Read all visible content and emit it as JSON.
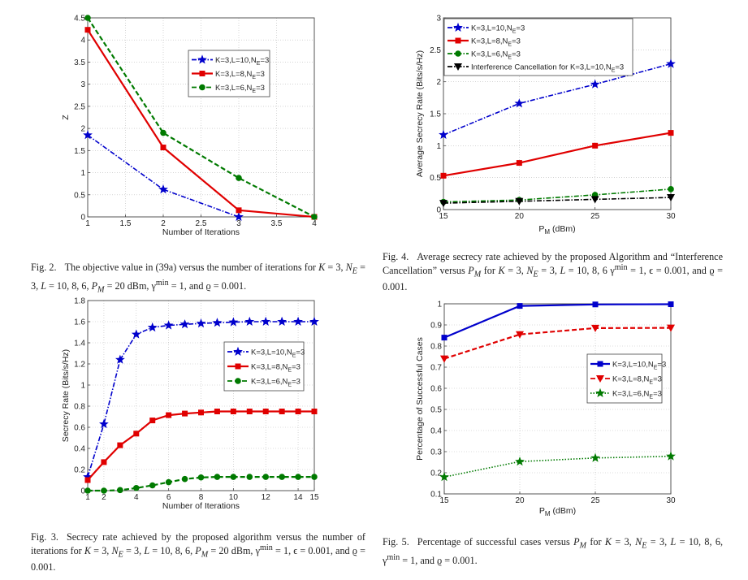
{
  "chart_data": [
    {
      "id": "fig2",
      "type": "line",
      "xlabel": "Number of Iterations",
      "ylabel": "Z",
      "xlim": [
        1,
        4
      ],
      "ylim": [
        0,
        4.5
      ],
      "xticks": [
        1,
        1.5,
        2,
        2.5,
        3,
        3.5,
        4
      ],
      "xtick_labels": [
        "1",
        "1.5",
        "2",
        "2.5",
        "3",
        "3.5",
        "4"
      ],
      "yticks": [
        0,
        0.5,
        1,
        1.5,
        2,
        2.5,
        3,
        3.5,
        4,
        4.5
      ],
      "ytick_labels": [
        "0",
        "0.5",
        "1",
        "1.5",
        "2",
        "2.5",
        "3",
        "3.5",
        "4",
        "4.5"
      ],
      "grid": true,
      "legend_position": "center-right",
      "series": [
        {
          "name": "K=3,L=10,N_E=3",
          "label_main": "K=3,L=10,N",
          "label_sub": "E",
          "label_tail": "=3",
          "x": [
            1,
            2,
            3
          ],
          "values": [
            1.85,
            0.62,
            0.0
          ],
          "color": "#0000cc",
          "dash": "dashdot",
          "marker": "star"
        },
        {
          "name": "K=3,L=8,N_E=3",
          "label_main": "K=3,L=8,N",
          "label_sub": "E",
          "label_tail": "=3",
          "x": [
            1,
            2,
            3,
            4
          ],
          "values": [
            4.23,
            1.57,
            0.15,
            0.0
          ],
          "color": "#e00000",
          "dash": "solid",
          "marker": "square"
        },
        {
          "name": "K=3,L=6,N_E=3",
          "label_main": "K=3,L=6,N",
          "label_sub": "E",
          "label_tail": "=3",
          "x": [
            1,
            2,
            3,
            4
          ],
          "values": [
            4.5,
            1.9,
            0.88,
            0.0
          ],
          "color": "#007a00",
          "dash": "dashed",
          "marker": "circle"
        }
      ]
    },
    {
      "id": "fig4",
      "type": "line",
      "xlabel": "P",
      "xlabel_sub": "M",
      "xlabel_tail": " (dBm)",
      "ylabel": "Average  Secrecy Rate (Bits/s/Hz)",
      "xlim": [
        15,
        30
      ],
      "ylim": [
        0,
        3
      ],
      "xticks": [
        15,
        20,
        25,
        30
      ],
      "xtick_labels": [
        "15",
        "20",
        "25",
        "30"
      ],
      "yticks": [
        0,
        0.5,
        1,
        1.5,
        2,
        2.5,
        3
      ],
      "ytick_labels": [
        "0",
        "0.5",
        "1",
        "1.5",
        "2",
        "2.5",
        "3"
      ],
      "grid": true,
      "legend_position": "top-left",
      "series": [
        {
          "name": "K=3,L=10,N_E=3",
          "label_main": "K=3,L=10,N",
          "label_sub": "E",
          "label_tail": "=3",
          "x": [
            15,
            20,
            25,
            30
          ],
          "values": [
            1.17,
            1.66,
            1.96,
            2.28
          ],
          "color": "#0000cc",
          "dash": "dashdot",
          "marker": "star"
        },
        {
          "name": "K=3,L=8,N_E=3",
          "label_main": "K=3,L=8,N",
          "label_sub": "E",
          "label_tail": "=3",
          "x": [
            15,
            20,
            25,
            30
          ],
          "values": [
            0.53,
            0.73,
            1.0,
            1.2
          ],
          "color": "#e00000",
          "dash": "solid",
          "marker": "square"
        },
        {
          "name": "K=3,L=6,N_E=3",
          "label_main": "K=3,L=6,N",
          "label_sub": "E",
          "label_tail": "=3",
          "x": [
            15,
            20,
            25,
            30
          ],
          "values": [
            0.12,
            0.15,
            0.23,
            0.32
          ],
          "color": "#007a00",
          "dash": "dashdot",
          "marker": "circle"
        },
        {
          "name": "Interference Cancellation for K=3,L=10,N_E=3",
          "label_main": "Interference Cancellation for K=3,L=10,N",
          "label_sub": "E",
          "label_tail": "=3",
          "x": [
            15,
            20,
            25,
            30
          ],
          "values": [
            0.1,
            0.13,
            0.16,
            0.19
          ],
          "color": "#000000",
          "dash": "dashdot",
          "marker": "triangle-down"
        }
      ]
    },
    {
      "id": "fig3",
      "type": "line",
      "xlabel": "Number of Iterations",
      "ylabel": "Secrecy Rate (Bits/s/Hz)",
      "xlim": [
        1,
        15
      ],
      "ylim": [
        0,
        1.8
      ],
      "xticks": [
        1,
        2,
        4,
        6,
        8,
        10,
        12,
        14,
        15
      ],
      "xtick_labels": [
        "1",
        "2",
        "4",
        "6",
        "8",
        "10",
        "12",
        "14",
        "15"
      ],
      "yticks": [
        0,
        0.2,
        0.4,
        0.6,
        0.8,
        1,
        1.2,
        1.4,
        1.6,
        1.8
      ],
      "ytick_labels": [
        "0",
        "0.2",
        "0.4",
        "0.6",
        "0.8",
        "1",
        "1.2",
        "1.4",
        "1.6",
        "1.8"
      ],
      "grid": true,
      "legend_position": "center-right",
      "series": [
        {
          "name": "K=3,L=10,N_E=3",
          "label_main": "K=3,L=10,N",
          "label_sub": "E",
          "label_tail": "=3",
          "x": [
            1,
            2,
            3,
            4,
            5,
            6,
            7,
            8,
            9,
            10,
            11,
            12,
            13,
            14,
            15
          ],
          "values": [
            0.13,
            0.63,
            1.24,
            1.48,
            1.545,
            1.565,
            1.575,
            1.583,
            1.59,
            1.595,
            1.6,
            1.6,
            1.6,
            1.6,
            1.6
          ],
          "color": "#0000cc",
          "dash": "dashdot",
          "marker": "star"
        },
        {
          "name": "K=3,L=8,N_E=3",
          "label_main": "K=3,L=8,N",
          "label_sub": "E",
          "label_tail": "=3",
          "x": [
            1,
            2,
            3,
            4,
            5,
            6,
            7,
            8,
            9,
            10,
            11,
            12,
            13,
            14,
            15
          ],
          "values": [
            0.1,
            0.27,
            0.43,
            0.54,
            0.665,
            0.715,
            0.73,
            0.74,
            0.75,
            0.75,
            0.75,
            0.75,
            0.75,
            0.75,
            0.75
          ],
          "color": "#e00000",
          "dash": "solid",
          "marker": "square"
        },
        {
          "name": "K=3,L=6,N_E=3",
          "label_main": "K=3,L=6,N",
          "label_sub": "E",
          "label_tail": "=3",
          "x": [
            1,
            2,
            3,
            4,
            5,
            6,
            7,
            8,
            9,
            10,
            11,
            12,
            13,
            14,
            15
          ],
          "values": [
            0.0,
            0.0,
            0.005,
            0.025,
            0.05,
            0.08,
            0.11,
            0.125,
            0.13,
            0.13,
            0.13,
            0.13,
            0.13,
            0.13,
            0.13
          ],
          "color": "#007a00",
          "dash": "dashed",
          "marker": "circle"
        }
      ]
    },
    {
      "id": "fig5",
      "type": "line",
      "xlabel": "P",
      "xlabel_sub": "M",
      "xlabel_tail": " (dBm)",
      "ylabel": "Percentage of Successful Cases",
      "xlim": [
        15,
        30
      ],
      "ylim": [
        0.1,
        1
      ],
      "xticks": [
        15,
        20,
        25,
        30
      ],
      "xtick_labels": [
        "15",
        "20",
        "25",
        "30"
      ],
      "yticks": [
        0.1,
        0.2,
        0.3,
        0.4,
        0.5,
        0.6,
        0.7,
        0.8,
        0.9,
        1
      ],
      "ytick_labels": [
        "0.1",
        "0.2",
        "0.3",
        "0.4",
        "0.5",
        "0.6",
        "0.7",
        "0.8",
        "0.9",
        "1"
      ],
      "grid": true,
      "legend_position": "center-right",
      "series": [
        {
          "name": "K=3,L=10,N_E=3",
          "label_main": "K=3,L=10,N",
          "label_sub": "E",
          "label_tail": "=3",
          "x": [
            15,
            20,
            25,
            30
          ],
          "values": [
            0.84,
            0.99,
            0.997,
            0.998
          ],
          "color": "#0000cc",
          "dash": "solid",
          "marker": "square"
        },
        {
          "name": "K=3,L=8,N_E=3",
          "label_main": "K=3,L=8,N",
          "label_sub": "E",
          "label_tail": "=3",
          "x": [
            15,
            20,
            25,
            30
          ],
          "values": [
            0.74,
            0.855,
            0.885,
            0.886
          ],
          "color": "#e00000",
          "dash": "dashed",
          "marker": "triangle-down"
        },
        {
          "name": "K=3,L=6,N_E=3",
          "label_main": "K=3,L=6,N",
          "label_sub": "E",
          "label_tail": "=3",
          "x": [
            15,
            20,
            25,
            30
          ],
          "values": [
            0.18,
            0.253,
            0.27,
            0.278
          ],
          "color": "#007a00",
          "dash": "dotted",
          "marker": "star"
        }
      ]
    }
  ],
  "captions": {
    "fig2": {
      "label": "Fig. 2.",
      "text_html": "The objective value in (39a) versus the number of iterations for <i>K</i> = 3, <i>N<sub>E</sub></i> = 3, <i>L</i> = 10, 8, 6, <i>P<sub>M</sub></i> = 20 dBm, γ<sup>min</sup> = 1, and ϱ = 0.001."
    },
    "fig4": {
      "label": "Fig. 4.",
      "text_html": "Average secrecy rate achieved by the proposed Algorithm and “Interference Cancellation” versus <i>P<sub>M</sub></i> for <i>K</i> = 3, <i>N<sub>E</sub></i> = 3, <i>L</i> = 10, 8, 6 γ<sup>min</sup> = 1, ϵ = 0.001, and ϱ = 0.001."
    },
    "fig3": {
      "label": "Fig. 3.",
      "text_html": "Secrecy rate achieved by the proposed algorithm versus the number of iterations for <i>K</i> = 3, <i>N<sub>E</sub></i> = 3, <i>L</i> = 10, 8, 6, <i>P<sub>M</sub></i> = 20 dBm, γ<sup>min</sup> = 1, ϵ = 0.001, and ϱ = 0.001."
    },
    "fig5": {
      "label": "Fig. 5.",
      "text_html": "Percentage of successful cases versus <i>P<sub>M</sub></i> for <i>K</i> = 3, <i>N<sub>E</sub></i> = 3, <i>L</i> = 10, 8, 6, γ<sup>min</sup> = 1, and ϱ = 0.001."
    }
  }
}
